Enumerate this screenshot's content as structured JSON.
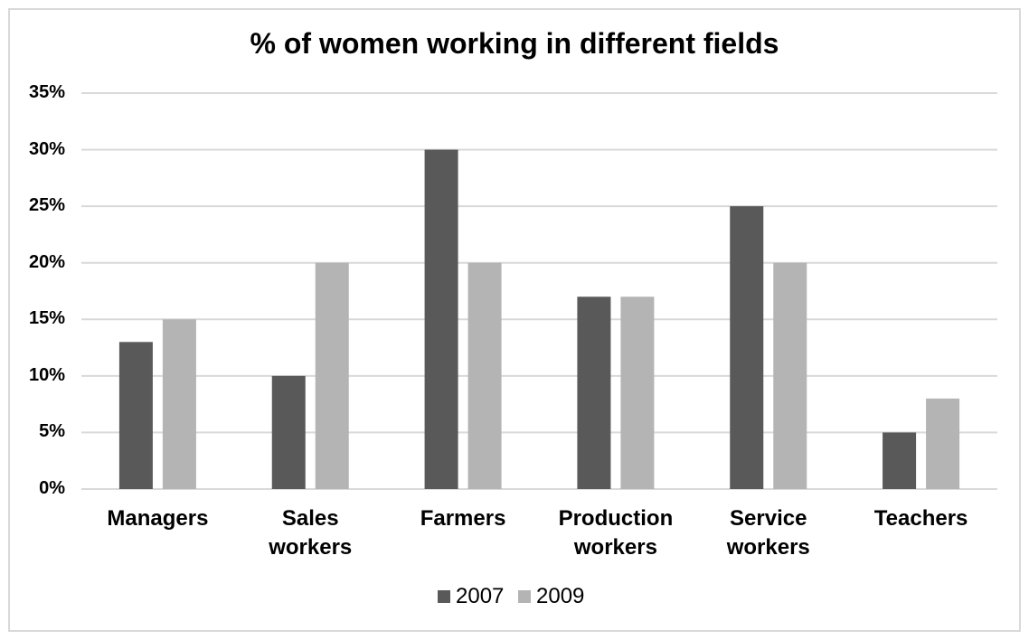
{
  "chart_data": {
    "type": "bar",
    "title": "% of women working in different fields",
    "categories": [
      "Managers",
      "Sales workers",
      "Farmers",
      "Production workers",
      "Service workers",
      "Teachers"
    ],
    "series": [
      {
        "name": "2007",
        "color": "#595959",
        "values": [
          13,
          10,
          30,
          17,
          25,
          5
        ]
      },
      {
        "name": "2009",
        "color": "#b4b4b4",
        "values": [
          15,
          20,
          20,
          17,
          20,
          8
        ]
      }
    ],
    "ylim": [
      0,
      35
    ],
    "yticks": [
      {
        "value": 0,
        "label": "0%"
      },
      {
        "value": 5,
        "label": "5%"
      },
      {
        "value": 10,
        "label": "10%"
      },
      {
        "value": 15,
        "label": "15%"
      },
      {
        "value": 20,
        "label": "20%"
      },
      {
        "value": 25,
        "label": "25%"
      },
      {
        "value": 30,
        "label": "30%"
      },
      {
        "value": 35,
        "label": "35%"
      }
    ],
    "grid": true,
    "legend": "bottom"
  }
}
